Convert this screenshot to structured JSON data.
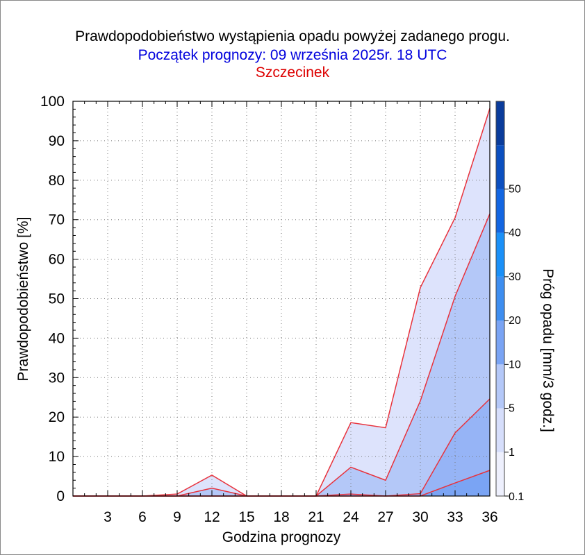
{
  "title": "Prawdopodobieństwo wystąpienia opadu powyżej zadanego progu.",
  "subtitle": "Początek prognozy: 09 września 2025r. 18 UTC",
  "location": "Szczecinek",
  "colors": {
    "title": "#000000",
    "subtitle": "#0000dd",
    "location": "#dd0000",
    "series_line": "#e8323c"
  },
  "chart_data": {
    "type": "area",
    "title": "Prawdopodobieństwo wystąpienia opadu powyżej zadanego progu.",
    "xlabel": "Godzina prognozy",
    "ylabel": "Prawdopodobieństwo [%]",
    "xlim": [
      0,
      36
    ],
    "ylim": [
      0,
      100
    ],
    "x": [
      3,
      6,
      9,
      12,
      15,
      18,
      21,
      24,
      27,
      30,
      33,
      36
    ],
    "x_ticks": [
      "3",
      "6",
      "9",
      "12",
      "15",
      "18",
      "21",
      "24",
      "27",
      "30",
      "33",
      "36"
    ],
    "y_ticks": [
      "0",
      "10",
      "20",
      "30",
      "40",
      "50",
      "60",
      "70",
      "80",
      "90",
      "100"
    ],
    "grid": true,
    "series": [
      {
        "name": "0.1",
        "color": "#dde3fc",
        "values": [
          0,
          0,
          0.5,
          5.3,
          0,
          0,
          0,
          18.6,
          17.3,
          52.8,
          70.5,
          98.2
        ]
      },
      {
        "name": "1",
        "color": "#b4c8f8",
        "values": [
          0,
          0,
          0,
          2.0,
          0,
          0,
          0,
          7.3,
          4.0,
          24.1,
          50.6,
          71.5
        ]
      },
      {
        "name": "5",
        "color": "#96b4f6",
        "values": [
          0,
          0,
          0,
          0,
          0,
          0,
          0,
          0.5,
          0,
          0.6,
          16.0,
          24.6
        ]
      },
      {
        "name": "10",
        "color": "#7aa4f4",
        "values": [
          0,
          0,
          0,
          0,
          0,
          0,
          0,
          0,
          0,
          0,
          3.3,
          6.5
        ]
      }
    ],
    "colorbar": {
      "label": "Próg opadu [mm/3 godz.]",
      "levels": [
        "0.1",
        "1",
        "5",
        "10",
        "20",
        "30",
        "40",
        "50"
      ],
      "colors": [
        "#eef0fd",
        "#d6defb",
        "#b4c8f8",
        "#7aa4f4",
        "#3e8ef0",
        "#1a90f8",
        "#1266e2",
        "#0b4fc0",
        "#0a3c9c"
      ]
    }
  }
}
